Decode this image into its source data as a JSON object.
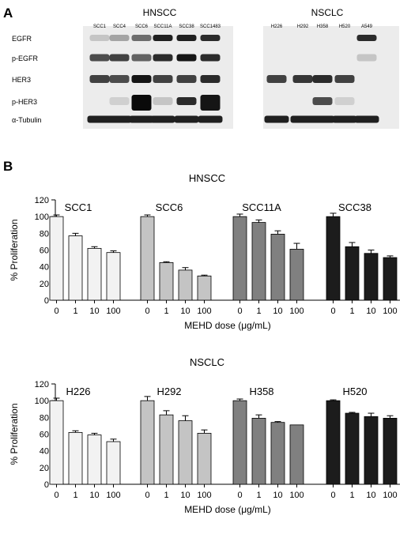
{
  "panel_a": {
    "letter": "A",
    "groups": [
      {
        "name": "HNSCC",
        "lanes": [
          "SCC1",
          "SCC4",
          "SCC6",
          "SCC11A",
          "SCC38",
          "SCC1483"
        ]
      },
      {
        "name": "NSCLC",
        "lanes": [
          "H226",
          "H292",
          "H358",
          "H520",
          "A549"
        ]
      }
    ],
    "rows": [
      "EGFR",
      "p-EGFR",
      "HER3",
      "p-HER3",
      "α-Tubulin"
    ]
  },
  "panel_b": {
    "letter": "B"
  },
  "chart_data": [
    {
      "type": "bar",
      "title": "HNSCC",
      "xlabel": "MEHD dose (μg/mL)",
      "ylabel": "% Proliferation",
      "ylim": [
        0,
        120
      ],
      "yticks": [
        "0",
        "20",
        "40",
        "60",
        "80",
        "100",
        "120"
      ],
      "categories": [
        "0",
        "1",
        "10",
        "100"
      ],
      "series": [
        {
          "name": "SCC1",
          "color": "#f2f2f2",
          "values": [
            100,
            77,
            62,
            57
          ],
          "errors": [
            2,
            3,
            2,
            2
          ]
        },
        {
          "name": "SCC6",
          "color": "#c4c4c4",
          "values": [
            100,
            45,
            36,
            29
          ],
          "errors": [
            2,
            1,
            3,
            1
          ]
        },
        {
          "name": "SCC11A",
          "color": "#808080",
          "values": [
            100,
            93,
            79,
            61
          ],
          "errors": [
            3,
            3,
            4,
            7
          ]
        },
        {
          "name": "SCC38",
          "color": "#1c1c1c",
          "values": [
            100,
            64,
            56,
            51
          ],
          "errors": [
            4,
            5,
            4,
            2
          ]
        }
      ]
    },
    {
      "type": "bar",
      "title": "NSCLC",
      "xlabel": "MEHD dose (μg/mL)",
      "ylabel": "% Proliferation",
      "ylim": [
        0,
        120
      ],
      "yticks": [
        "0",
        "20",
        "40",
        "60",
        "80",
        "100",
        "120"
      ],
      "categories": [
        "0",
        "1",
        "10",
        "100"
      ],
      "series": [
        {
          "name": "H226",
          "color": "#f2f2f2",
          "values": [
            100,
            62,
            59,
            51
          ],
          "errors": [
            3,
            2,
            2,
            3
          ]
        },
        {
          "name": "H292",
          "color": "#c4c4c4",
          "values": [
            100,
            83,
            76,
            61
          ],
          "errors": [
            5,
            5,
            6,
            4
          ]
        },
        {
          "name": "H358",
          "color": "#808080",
          "values": [
            100,
            79,
            74,
            71
          ],
          "errors": [
            2,
            4,
            1,
            0
          ]
        },
        {
          "name": "H520",
          "color": "#1c1c1c",
          "values": [
            100,
            85,
            81,
            79
          ],
          "errors": [
            1,
            1,
            4,
            3
          ]
        }
      ]
    }
  ]
}
